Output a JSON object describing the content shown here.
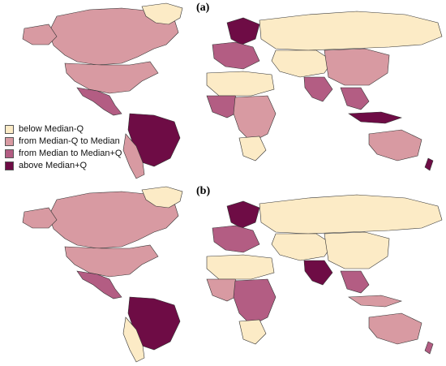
{
  "panels": [
    {
      "label": "(a)"
    },
    {
      "label": "(b)"
    }
  ],
  "legend": [
    {
      "label": "below Median-Q",
      "color": "#fcebc6"
    },
    {
      "label": "from Median-Q to Median",
      "color": "#d89aa2"
    },
    {
      "label": "from Median to Median+Q",
      "color": "#b35d83"
    },
    {
      "label": "above Median+Q",
      "color": "#6e0c45"
    }
  ],
  "colors": {
    "c1": "#fcebc6",
    "c2": "#d89aa2",
    "c3": "#b35d83",
    "c4": "#6e0c45",
    "border": "#333333"
  }
}
